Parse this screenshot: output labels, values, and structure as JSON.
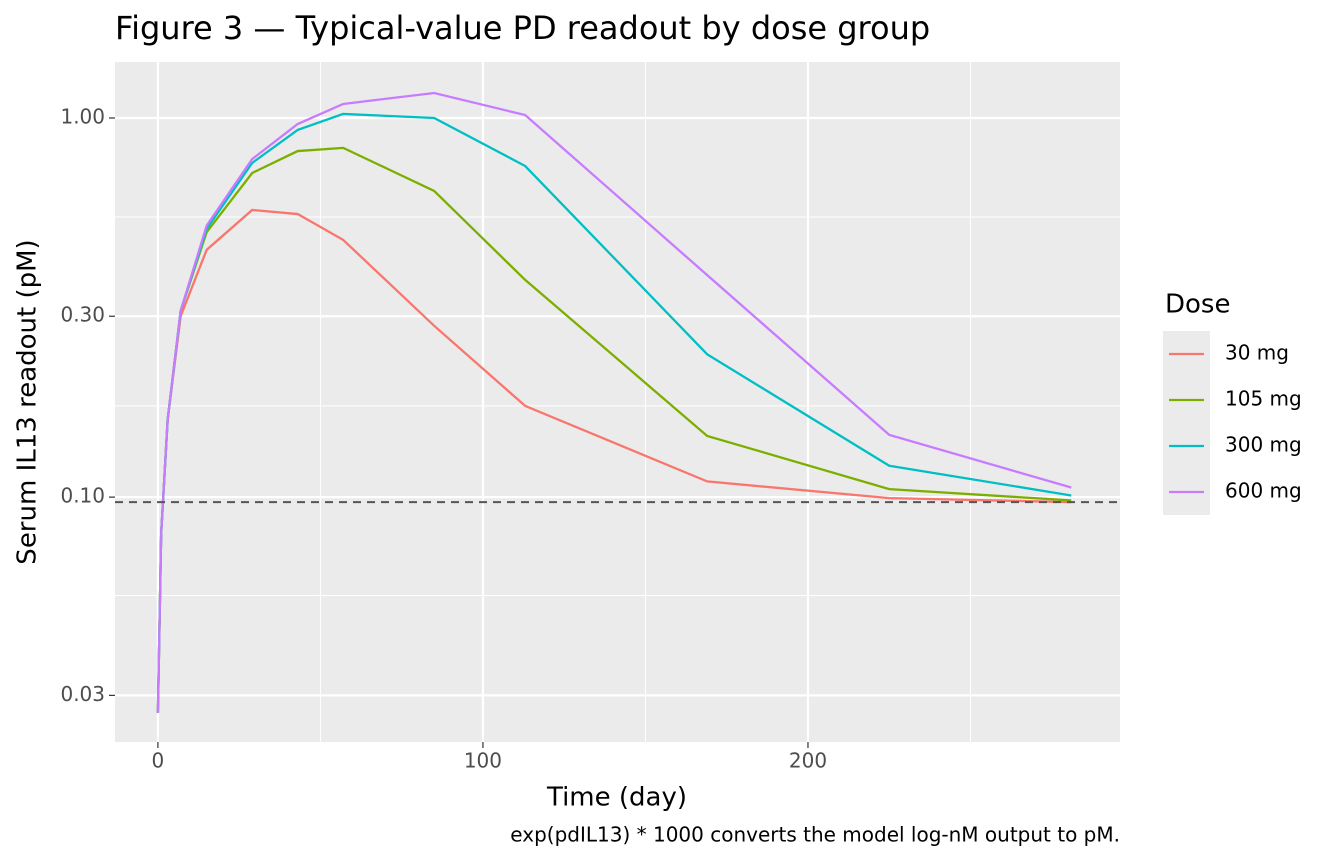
{
  "chart_data": {
    "type": "line",
    "title": "Figure 3 — Typical-value PD readout by dose group",
    "x_label": "Time (day)",
    "y_label": "Serum IL13 readout (pM)",
    "caption": "exp(pdIL13) * 1000 converts the model log-nM output to pM.",
    "legend_title": "Dose",
    "legend_position": "right",
    "y_scale": "log",
    "grid": true,
    "x": [
      0,
      1,
      3,
      7,
      15,
      29,
      43,
      57,
      85,
      113,
      169,
      225,
      281
    ],
    "series": [
      {
        "name": "30 mg",
        "color": "#F8766D",
        "values": [
          0.027,
          0.08,
          0.16,
          0.3,
          0.449,
          0.572,
          0.558,
          0.477,
          0.283,
          0.174,
          0.11,
          0.0994,
          0.097
        ]
      },
      {
        "name": "105 mg",
        "color": "#7CAE00",
        "values": [
          0.027,
          0.08,
          0.16,
          0.31,
          0.5,
          0.716,
          0.818,
          0.834,
          0.642,
          0.374,
          0.145,
          0.105,
          0.098
        ]
      },
      {
        "name": "300 mg",
        "color": "#00BFC4",
        "values": [
          0.027,
          0.08,
          0.16,
          0.31,
          0.51,
          0.761,
          0.93,
          1.025,
          1.0,
          0.747,
          0.238,
          0.121,
          0.101
        ]
      },
      {
        "name": "600 mg",
        "color": "#C77CFF",
        "values": [
          0.027,
          0.08,
          0.16,
          0.31,
          0.52,
          0.779,
          0.964,
          1.089,
          1.164,
          1.018,
          0.385,
          0.146,
          0.106
        ]
      }
    ],
    "hline": {
      "value": 0.097,
      "color": "#555555",
      "style": "dashed"
    },
    "xlim": [
      -13.2,
      296
    ],
    "xticks": [
      0,
      100,
      200
    ],
    "x_minor_ticks": [
      50,
      150,
      250
    ],
    "ylim": [
      0.0226,
      1.405
    ],
    "yticks": [
      {
        "value": 0.03,
        "label": "0.03"
      },
      {
        "value": 0.1,
        "label": "0.10"
      },
      {
        "value": 0.3,
        "label": "0.30"
      },
      {
        "value": 1,
        "label": "1.00"
      }
    ],
    "y_minor_ticks": [
      0.055,
      0.174,
      0.548
    ]
  }
}
